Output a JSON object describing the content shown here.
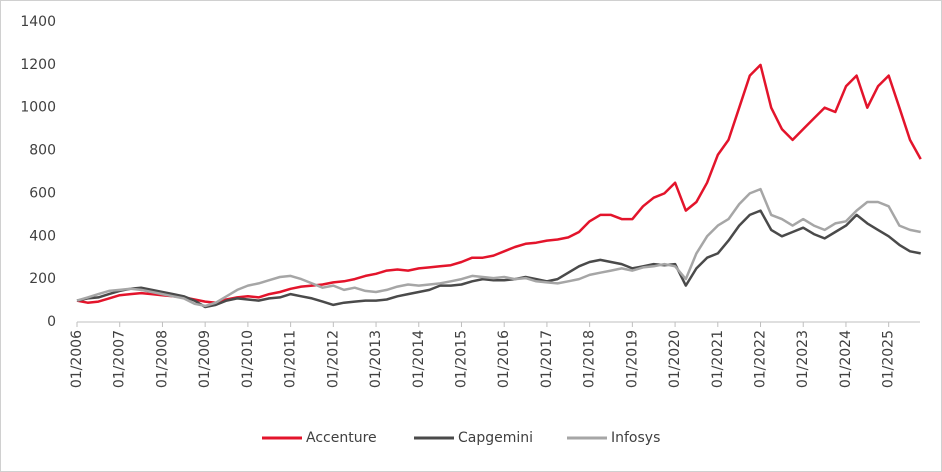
{
  "chart_data": {
    "type": "line",
    "x": [
      "01/2006",
      "04/2006",
      "07/2006",
      "10/2006",
      "01/2007",
      "04/2007",
      "07/2007",
      "10/2007",
      "01/2008",
      "04/2008",
      "07/2008",
      "10/2008",
      "01/2009",
      "04/2009",
      "07/2009",
      "10/2009",
      "01/2010",
      "04/2010",
      "07/2010",
      "10/2010",
      "01/2011",
      "04/2011",
      "07/2011",
      "10/2011",
      "01/2012",
      "04/2012",
      "07/2012",
      "10/2012",
      "01/2013",
      "04/2013",
      "07/2013",
      "10/2013",
      "01/2014",
      "04/2014",
      "07/2014",
      "10/2014",
      "01/2015",
      "04/2015",
      "07/2015",
      "10/2015",
      "01/2016",
      "04/2016",
      "07/2016",
      "10/2016",
      "01/2017",
      "04/2017",
      "07/2017",
      "10/2017",
      "01/2018",
      "04/2018",
      "07/2018",
      "10/2018",
      "01/2019",
      "04/2019",
      "07/2019",
      "10/2019",
      "01/2020",
      "04/2020",
      "07/2020",
      "10/2020",
      "01/2021",
      "04/2021",
      "07/2021",
      "10/2021",
      "01/2022",
      "04/2022",
      "07/2022",
      "10/2022",
      "01/2023",
      "04/2023",
      "07/2023",
      "10/2023",
      "01/2024",
      "04/2024",
      "07/2024",
      "10/2024",
      "01/2025",
      "04/2025",
      "07/2025",
      "10/2025"
    ],
    "series": [
      {
        "name": "Accenture",
        "color": "#e3142b",
        "values": [
          100,
          90,
          95,
          110,
          125,
          130,
          135,
          130,
          125,
          120,
          115,
          105,
          95,
          90,
          105,
          115,
          120,
          115,
          130,
          140,
          155,
          165,
          170,
          175,
          185,
          190,
          200,
          215,
          225,
          240,
          245,
          240,
          250,
          255,
          260,
          265,
          280,
          300,
          300,
          310,
          330,
          350,
          365,
          370,
          380,
          385,
          395,
          420,
          470,
          500,
          500,
          480,
          480,
          540,
          580,
          600,
          650,
          520,
          560,
          650,
          780,
          850,
          1000,
          1150,
          1200,
          1000,
          900,
          850,
          900,
          950,
          1000,
          980,
          1100,
          1150,
          1000,
          1100,
          1150,
          1000,
          850,
          760
        ]
      },
      {
        "name": "Capgemini",
        "color": "#4a4a4a",
        "values": [
          100,
          110,
          115,
          130,
          145,
          155,
          160,
          150,
          140,
          130,
          120,
          100,
          70,
          80,
          100,
          110,
          105,
          100,
          110,
          115,
          130,
          120,
          110,
          95,
          80,
          90,
          95,
          100,
          100,
          105,
          120,
          130,
          140,
          150,
          170,
          170,
          175,
          190,
          200,
          195,
          195,
          200,
          210,
          200,
          190,
          200,
          230,
          260,
          280,
          290,
          280,
          270,
          250,
          260,
          270,
          265,
          270,
          170,
          250,
          300,
          320,
          380,
          450,
          500,
          520,
          430,
          400,
          420,
          440,
          410,
          390,
          420,
          450,
          500,
          460,
          430,
          400,
          360,
          330,
          320
        ]
      },
      {
        "name": "Infosys",
        "color": "#a6a6a6",
        "values": [
          100,
          115,
          130,
          145,
          150,
          155,
          150,
          140,
          130,
          120,
          110,
          85,
          75,
          90,
          120,
          150,
          170,
          180,
          195,
          210,
          215,
          200,
          180,
          160,
          170,
          150,
          160,
          145,
          140,
          150,
          165,
          175,
          170,
          175,
          180,
          190,
          200,
          215,
          210,
          205,
          210,
          200,
          205,
          190,
          185,
          180,
          190,
          200,
          220,
          230,
          240,
          250,
          240,
          255,
          260,
          270,
          260,
          200,
          320,
          400,
          450,
          480,
          550,
          600,
          620,
          500,
          480,
          450,
          480,
          450,
          430,
          460,
          470,
          520,
          560,
          560,
          540,
          450,
          430,
          420
        ]
      }
    ],
    "xticks": [
      "01/2006",
      "01/2007",
      "01/2008",
      "01/2009",
      "01/2010",
      "01/2011",
      "01/2012",
      "01/2013",
      "01/2014",
      "01/2015",
      "01/2016",
      "01/2017",
      "01/2018",
      "01/2019",
      "01/2020",
      "01/2021",
      "01/2022",
      "01/2023",
      "01/2024",
      "01/2025"
    ],
    "ylim": [
      0,
      1400
    ],
    "yticks": [
      0,
      200,
      400,
      600,
      800,
      1000,
      1200,
      1400
    ],
    "grid": false
  }
}
